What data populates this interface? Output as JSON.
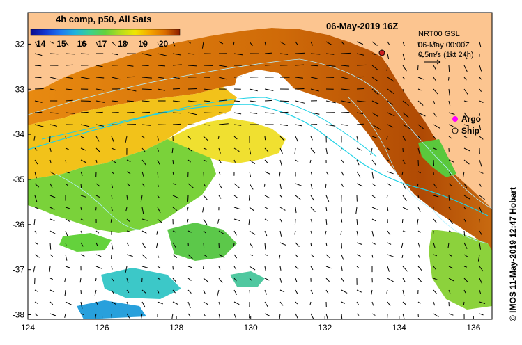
{
  "header": {
    "composite_title": "4h comp, p50, All Sats",
    "datetime": "06-May-2019 16Z"
  },
  "colorbar": {
    "ticks": [
      "14",
      "15",
      "16",
      "17",
      "18",
      "19",
      "20"
    ],
    "range": [
      13.5,
      20.8
    ],
    "colors": [
      "#0a0a8c",
      "#1437d2",
      "#1e78f0",
      "#1eb4dc",
      "#3cd28c",
      "#64d23c",
      "#b4dc1e",
      "#f0e600",
      "#f5a500",
      "#dc6e00",
      "#b43c00",
      "#8c1e00"
    ]
  },
  "current_legend": {
    "model": "NRT00 GSL",
    "time": "06-May 00:00Z",
    "scale": "0.5m/s (1kt 24h)"
  },
  "marker_legend": {
    "argo": "Argo",
    "ship": "Ship",
    "argo_color": "#ff00ff"
  },
  "axes": {
    "x_ticks": [
      "124",
      "126",
      "128",
      "130",
      "132",
      "134",
      "136"
    ],
    "y_ticks": [
      "-32",
      "-33",
      "-34",
      "-35",
      "-36",
      "-37",
      "-38"
    ],
    "lon_range": [
      124,
      136.5
    ],
    "lat_range": [
      -31.3,
      -38.1
    ]
  },
  "colors": {
    "land": "#fcc590",
    "cloud": "#ffffff",
    "contour": "#b4f0ff",
    "isobath": "#1ed2e6"
  },
  "copyright": "© IMOS 11-May-2019 12:47 Hobart"
}
